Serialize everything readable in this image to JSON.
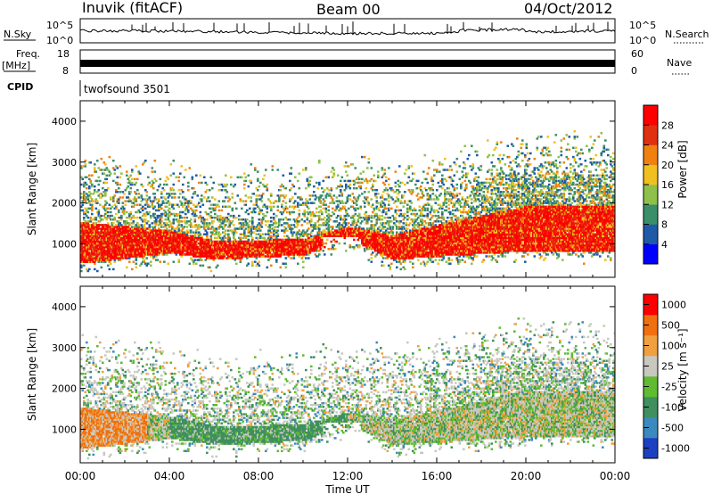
{
  "header": {
    "station": "Inuvik (fitACF)",
    "beam": "Beam 00",
    "date": "04/Oct/2012"
  },
  "strips": {
    "nsky_label": "N.Sky",
    "nsky_ticks": [
      "10^5",
      "10^0"
    ],
    "nsearch_label": "N.Search",
    "freq_label_1": "Freq.",
    "freq_label_2": "[MHz]",
    "freq_ticks": [
      "18",
      "8"
    ],
    "nave_label": "Nave",
    "nave_ticks": [
      "60",
      "0"
    ],
    "cpid_label": "CPID",
    "cpid_value": "twofsound 3501"
  },
  "panels": {
    "ylabel": "Slant Range [km]",
    "yticks": [
      "1000",
      "2000",
      "3000",
      "4000"
    ],
    "xticks": [
      "00:00",
      "04:00",
      "08:00",
      "12:00",
      "16:00",
      "20:00",
      "00:00"
    ],
    "xlabel": "Time UT"
  },
  "colorbars": {
    "power": {
      "label": "Power [dB]",
      "ticks": [
        "4",
        "8",
        "12",
        "16",
        "20",
        "24",
        "28"
      ],
      "colors": [
        "#0000ff",
        "#1f5aa8",
        "#3a8f6a",
        "#8fc04a",
        "#f0c020",
        "#f08010",
        "#e03010",
        "#ff0000"
      ]
    },
    "velocity": {
      "label": "Velocity [m s⁻¹]",
      "ticks": [
        "1000",
        "500",
        "100",
        "25",
        "-25",
        "-100",
        "-500",
        "-1000"
      ],
      "colors": [
        "#1d3fc2",
        "#3a8abf",
        "#3f8f5f",
        "#5fbb30",
        "#c8c8c0",
        "#f0a040",
        "#f07010",
        "#ff0000"
      ]
    }
  },
  "chart_data": [
    {
      "type": "heatmap",
      "title": "Power [dB]",
      "xlabel": "Time UT",
      "ylabel": "Slant Range [km]",
      "xlim": [
        "00:00",
        "24:00"
      ],
      "ylim": [
        180,
        4500
      ],
      "colorbar_range": [
        0,
        30
      ],
      "main_echo_band_km": [
        {
          "time": "00:00",
          "low": 500,
          "high": 1500
        },
        {
          "time": "04:00",
          "low": 750,
          "high": 1300
        },
        {
          "time": "06:00",
          "low": 600,
          "high": 1050
        },
        {
          "time": "10:00",
          "low": 700,
          "high": 1100
        },
        {
          "time": "12:00",
          "low": 1100,
          "high": 1400
        },
        {
          "time": "14:00",
          "low": 600,
          "high": 1200
        },
        {
          "time": "20:00",
          "low": 800,
          "high": 1900
        },
        {
          "time": "24:00",
          "low": 800,
          "high": 1900
        }
      ]
    },
    {
      "type": "heatmap",
      "title": "Velocity [m s⁻¹]",
      "xlabel": "Time UT",
      "ylabel": "Slant Range [km]",
      "xlim": [
        "00:00",
        "24:00"
      ],
      "ylim": [
        180,
        4500
      ],
      "colorbar_range": [
        -1000,
        1000
      ]
    }
  ]
}
